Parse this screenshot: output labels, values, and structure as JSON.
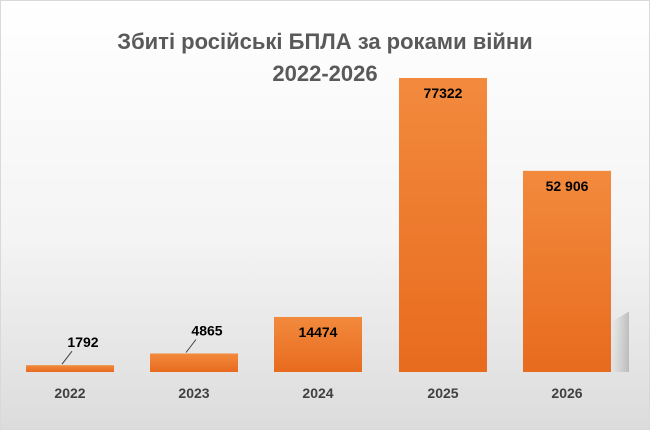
{
  "chart_data": {
    "type": "bar",
    "title": "Збиті російські БПЛА за роками війни",
    "subtitle": "2022-2026",
    "categories": [
      "2022",
      "2023",
      "2024",
      "2025",
      "2026"
    ],
    "values": [
      1792,
      4865,
      14474,
      77322,
      52906
    ],
    "data_labels": [
      "1792",
      "4865",
      "14474",
      "77322",
      "52 906"
    ],
    "ylim": [
      0,
      77322
    ],
    "grid": false,
    "legend": "none",
    "bar_color": "#e86b1f",
    "bar_color_light": "#f28a3d"
  }
}
